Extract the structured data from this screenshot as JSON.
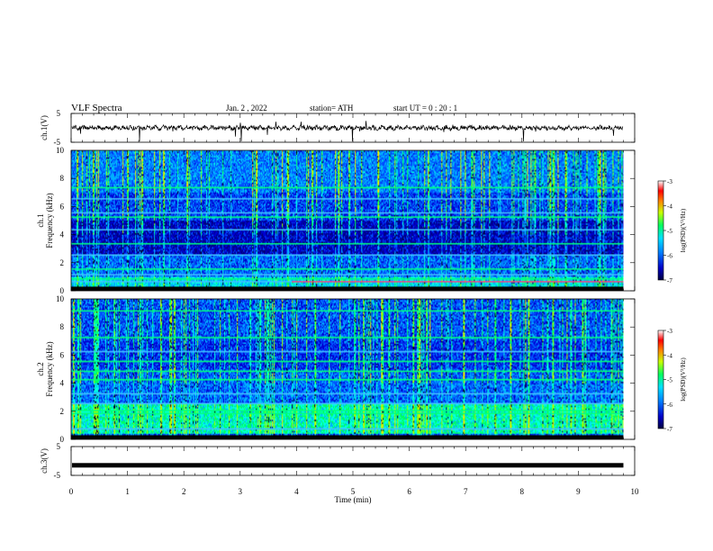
{
  "header": {
    "title": "VLF  Spectra",
    "date": "Jan. 2  , 2022",
    "station": "station= ATH",
    "start": "start  UT  =    0  : 20 : 1"
  },
  "chart_data": [
    {
      "type": "line",
      "name": "ch1-waveform",
      "ylabel": "ch.1(V)",
      "ylim": [
        -5,
        5
      ],
      "yticks": [
        "5",
        "-5"
      ],
      "xlim": [
        0,
        10
      ],
      "color": "#000000"
    },
    {
      "type": "heatmap",
      "name": "ch1-spectrogram",
      "ylabel": "ch.1\nFrequency  (kHz)",
      "ylabel_lines": [
        "ch.1",
        "Frequency  (kHz)"
      ],
      "ylim": [
        0,
        10
      ],
      "yticks": [
        "0",
        "2",
        "4",
        "6",
        "8",
        "10"
      ],
      "xlim": [
        0,
        9.8
      ],
      "colorbar": {
        "label": "log(PSD)(V²/Hz)",
        "ticks": [
          "-3",
          "-4",
          "-5",
          "-6",
          "-7"
        ],
        "range": [
          -7,
          -3
        ]
      }
    },
    {
      "type": "heatmap",
      "name": "ch2-spectrogram",
      "ylabel": "ch.2\nFrequency  (kHz)",
      "ylabel_lines": [
        "ch.2",
        "Frequency  (kHz)"
      ],
      "ylim": [
        0,
        10
      ],
      "yticks": [
        "0",
        "2",
        "4",
        "6",
        "8",
        "10"
      ],
      "xlim": [
        0,
        9.8
      ],
      "colorbar": {
        "label": "log(PSD)(V²/Hz)",
        "ticks": [
          "-3",
          "-4",
          "-5",
          "-6",
          "-7"
        ],
        "range": [
          -7,
          -3
        ]
      }
    },
    {
      "type": "line",
      "name": "ch3-waveform",
      "ylabel": "ch.3(V)",
      "ylim": [
        -5,
        5
      ],
      "yticks": [
        "5",
        "-5"
      ],
      "xlim": [
        0,
        10
      ],
      "constant_value": -1.5,
      "color": "#000000"
    }
  ],
  "xaxis": {
    "label": "Time  (min)",
    "ticks": [
      "0",
      "1",
      "2",
      "3",
      "4",
      "5",
      "6",
      "7",
      "8",
      "9",
      "10"
    ],
    "range": [
      0,
      10
    ]
  }
}
